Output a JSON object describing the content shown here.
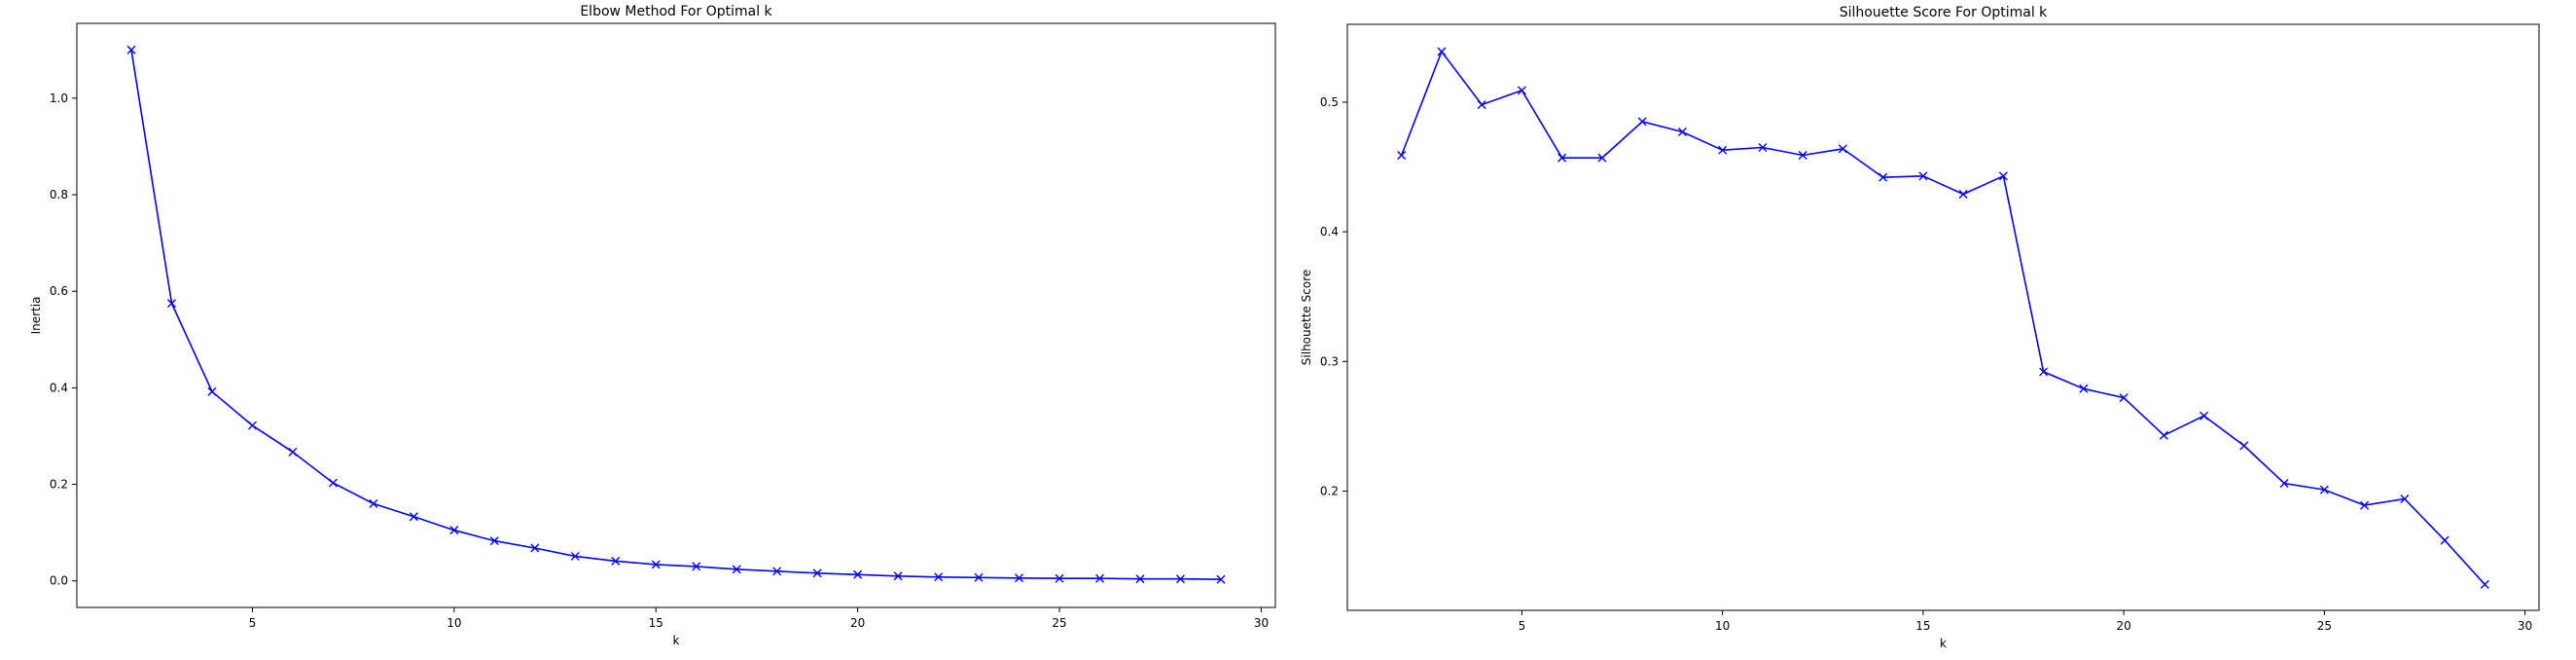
{
  "chart_data": [
    {
      "type": "line",
      "title": "Elbow Method For Optimal k",
      "xlabel": "k",
      "ylabel": "Inertia",
      "xlim": [
        0.65,
        30.35
      ],
      "ylim": [
        -0.055,
        1.155
      ],
      "xticks": [
        5,
        10,
        15,
        20,
        25,
        30
      ],
      "yticks": [
        0.0,
        0.2,
        0.4,
        0.6,
        0.8,
        1.0
      ],
      "ytick_labels": [
        "0.0",
        "0.2",
        "0.4",
        "0.6",
        "0.8",
        "1.0"
      ],
      "grid": false,
      "marker": "x",
      "color": "#0000ff",
      "series": [
        {
          "x": [
            2,
            3,
            4,
            5,
            6,
            7,
            8,
            9,
            10,
            11,
            12,
            13,
            14,
            15,
            16,
            17,
            18,
            19,
            20,
            21,
            22,
            23,
            24,
            25,
            26,
            27,
            28,
            29
          ],
          "values": [
            1.1,
            0.575,
            0.392,
            0.322,
            0.267,
            0.203,
            0.16,
            0.133,
            0.105,
            0.083,
            0.068,
            0.051,
            0.041,
            0.034,
            0.03,
            0.024,
            0.02,
            0.016,
            0.013,
            0.01,
            0.008,
            0.007,
            0.006,
            0.005,
            0.005,
            0.004,
            0.004,
            0.003
          ]
        }
      ]
    },
    {
      "type": "line",
      "title": "Silhouette Score For Optimal k",
      "xlabel": "k",
      "ylabel": "Silhouette Score",
      "xlim": [
        0.65,
        30.35
      ],
      "ylim": [
        0.108,
        0.56
      ],
      "xticks": [
        5,
        10,
        15,
        20,
        25,
        30
      ],
      "yticks": [
        0.2,
        0.3,
        0.4,
        0.5
      ],
      "ytick_labels": [
        "0.2",
        "0.3",
        "0.4",
        "0.5"
      ],
      "grid": false,
      "marker": "x",
      "color": "#0000ff",
      "series": [
        {
          "x": [
            2,
            3,
            4,
            5,
            6,
            7,
            8,
            9,
            10,
            11,
            12,
            13,
            14,
            15,
            16,
            17,
            18,
            19,
            20,
            21,
            22,
            23,
            24,
            25,
            26,
            27,
            28,
            29
          ],
          "values": [
            0.459,
            0.539,
            0.498,
            0.509,
            0.457,
            0.457,
            0.485,
            0.477,
            0.463,
            0.465,
            0.459,
            0.464,
            0.442,
            0.443,
            0.429,
            0.443,
            0.292,
            0.279,
            0.272,
            0.243,
            0.258,
            0.235,
            0.206,
            0.201,
            0.189,
            0.194,
            0.162,
            0.128
          ]
        }
      ]
    }
  ]
}
